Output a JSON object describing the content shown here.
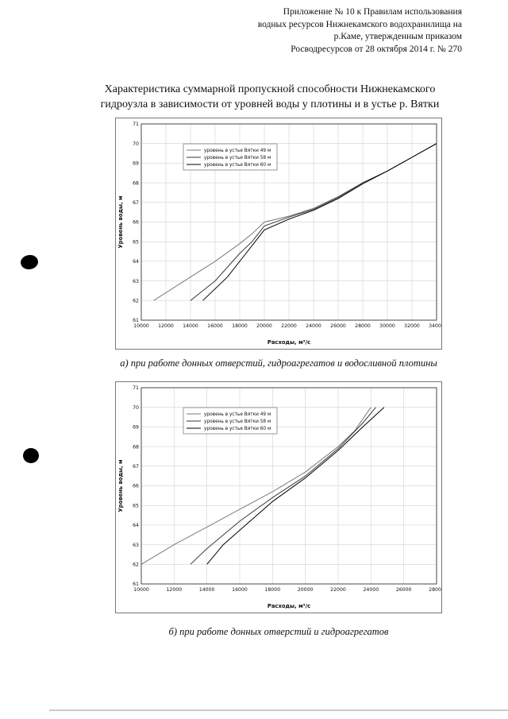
{
  "page": {
    "header_lines": [
      "Приложение № 10 к Правилам использования",
      "водных ресурсов Нижнекамского водохранилища на",
      "р.Каме, утвержденным приказом",
      "Росводресурсов от 28 октября 2014 г. № 270"
    ],
    "title_lines": [
      "Характеристика суммарной пропускной способности Нижнекамского",
      "гидроузла в зависимости от уровней воды у плотины и в устье р. Вятки"
    ],
    "caption_a": "а) при работе донных отверстий, гидроагрегатов и водосливной плотины",
    "caption_b": "б) при работе донных отверстий и гидроагрегатов"
  },
  "chart_data": [
    {
      "type": "line",
      "title": "",
      "xlabel": "Расходы, м³/с",
      "ylabel": "Уровень воды, м",
      "xlim": [
        10000,
        34000
      ],
      "xstep": 2000,
      "ylim": [
        61,
        71
      ],
      "ystep": 1,
      "grid": true,
      "legend_position": "top-left-inside",
      "series": [
        {
          "name": "уровень в устье Вятки 49 м",
          "color": "#7a7a7a",
          "points": [
            [
              11000,
              62
            ],
            [
              12000,
              62.4
            ],
            [
              14000,
              63.2
            ],
            [
              16000,
              64.0
            ],
            [
              18000,
              64.9
            ],
            [
              19000,
              65.4
            ],
            [
              20000,
              66.0
            ],
            [
              22000,
              66.3
            ],
            [
              24000,
              66.7
            ],
            [
              26000,
              67.3
            ],
            [
              28000,
              68.0
            ],
            [
              30000,
              68.6
            ],
            [
              32000,
              69.3
            ],
            [
              34000,
              70.0
            ]
          ]
        },
        {
          "name": "уровень в устье Вятки 58 м",
          "color": "#3a3a3a",
          "points": [
            [
              14000,
              62
            ],
            [
              16000,
              63.0
            ],
            [
              18000,
              64.4
            ],
            [
              19000,
              65.0
            ],
            [
              20000,
              65.8
            ],
            [
              22000,
              66.25
            ],
            [
              24000,
              66.65
            ],
            [
              26000,
              67.25
            ],
            [
              28000,
              68.0
            ],
            [
              30000,
              68.6
            ],
            [
              32000,
              69.3
            ],
            [
              34000,
              70.0
            ]
          ]
        },
        {
          "name": "уровень в устье Вятки 60 м",
          "color": "#000000",
          "points": [
            [
              15000,
              62
            ],
            [
              17000,
              63.2
            ],
            [
              18500,
              64.4
            ],
            [
              20000,
              65.6
            ],
            [
              22000,
              66.15
            ],
            [
              24000,
              66.6
            ],
            [
              26000,
              67.2
            ],
            [
              28000,
              67.95
            ],
            [
              30000,
              68.6
            ],
            [
              32000,
              69.3
            ],
            [
              34000,
              70.0
            ]
          ]
        }
      ]
    },
    {
      "type": "line",
      "title": "",
      "xlabel": "Расходы, м³/с",
      "ylabel": "Уровень воды, м",
      "xlim": [
        10000,
        28000
      ],
      "xstep": 2000,
      "ylim": [
        61,
        71
      ],
      "ystep": 1,
      "grid": true,
      "legend_position": "top-left-inside",
      "series": [
        {
          "name": "уровень в устье Вятки 49 м",
          "color": "#7a7a7a",
          "points": [
            [
              10000,
              62
            ],
            [
              12000,
              63.0
            ],
            [
              14000,
              63.9
            ],
            [
              16000,
              64.8
            ],
            [
              18000,
              65.7
            ],
            [
              20000,
              66.7
            ],
            [
              22000,
              68.0
            ],
            [
              23000,
              68.8
            ],
            [
              24000,
              70.0
            ]
          ]
        },
        {
          "name": "уровень в устье Вятки 58 м",
          "color": "#3a3a3a",
          "points": [
            [
              13000,
              62
            ],
            [
              14000,
              62.8
            ],
            [
              16000,
              64.2
            ],
            [
              18000,
              65.4
            ],
            [
              20000,
              66.5
            ],
            [
              22000,
              67.9
            ],
            [
              23500,
              69.2
            ],
            [
              24300,
              70.0
            ]
          ]
        },
        {
          "name": "уровень в устье Вятки 60 м",
          "color": "#000000",
          "points": [
            [
              14000,
              62
            ],
            [
              15000,
              63.0
            ],
            [
              16500,
              64.1
            ],
            [
              18000,
              65.2
            ],
            [
              20000,
              66.4
            ],
            [
              22000,
              67.8
            ],
            [
              23500,
              69.0
            ],
            [
              24800,
              70.0
            ]
          ]
        }
      ]
    }
  ]
}
